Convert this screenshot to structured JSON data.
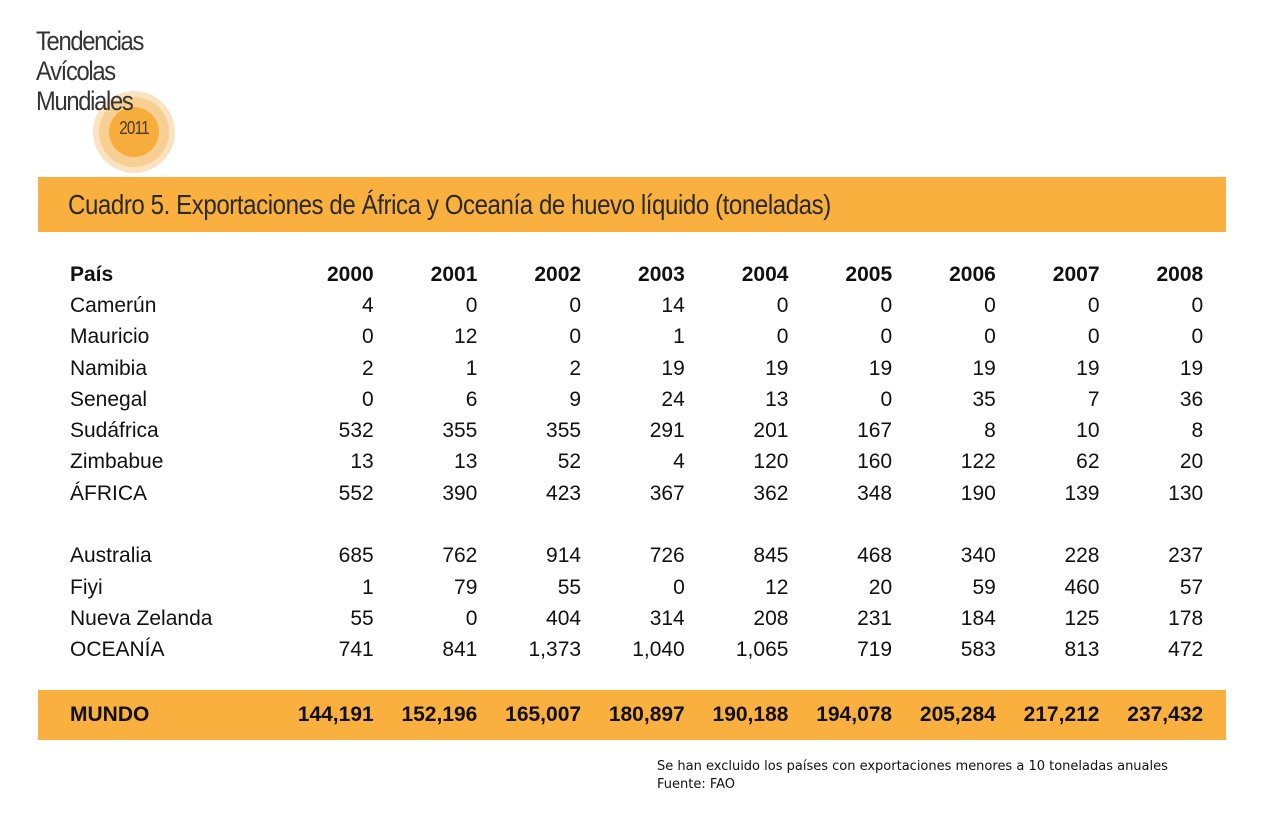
{
  "logo": {
    "line1": "Tendencias",
    "line2": "Avícolas",
    "line3": "Mundiales",
    "year": "2011"
  },
  "banner": {
    "title": "Cuadro 5. Exportaciones de África y Oceanía de huevo líquido (toneladas)"
  },
  "table": {
    "header": [
      "País",
      "2000",
      "2001",
      "2002",
      "2003",
      "2004",
      "2005",
      "2006",
      "2007",
      "2008"
    ],
    "africa_rows": [
      [
        "Camerún",
        "4",
        "0",
        "0",
        "14",
        "0",
        "0",
        "0",
        "0",
        "0"
      ],
      [
        "Mauricio",
        "0",
        "12",
        "0",
        "1",
        "0",
        "0",
        "0",
        "0",
        "0"
      ],
      [
        "Namibia",
        "2",
        "1",
        "2",
        "19",
        "19",
        "19",
        "19",
        "19",
        "19"
      ],
      [
        "Senegal",
        "0",
        "6",
        "9",
        "24",
        "13",
        "0",
        "35",
        "7",
        "36"
      ],
      [
        "Sudáfrica",
        "532",
        "355",
        "355",
        "291",
        "201",
        "167",
        "8",
        "10",
        "8"
      ],
      [
        "Zimbabue",
        "13",
        "13",
        "52",
        "4",
        "120",
        "160",
        "122",
        "62",
        "20"
      ]
    ],
    "africa_total": [
      "ÁFRICA",
      "552",
      "390",
      "423",
      "367",
      "362",
      "348",
      "190",
      "139",
      "130"
    ],
    "oceania_rows": [
      [
        "Australia",
        "685",
        "762",
        "914",
        "726",
        "845",
        "468",
        "340",
        "228",
        "237"
      ],
      [
        "Fiyi",
        "1",
        "79",
        "55",
        "0",
        "12",
        "20",
        "59",
        "460",
        "57"
      ],
      [
        "Nueva Zelanda",
        "55",
        "0",
        "404",
        "314",
        "208",
        "231",
        "184",
        "125",
        "178"
      ]
    ],
    "oceania_total": [
      "OCEANÍA",
      "741",
      "841",
      "1,373",
      "1,040",
      "1,065",
      "719",
      "583",
      "813",
      "472"
    ],
    "world_total": [
      "MUNDO",
      "144,191",
      "152,196",
      "165,007",
      "180,897",
      "190,188",
      "194,078",
      "205,284",
      "217,212",
      "237,432"
    ]
  },
  "notes": {
    "line1": "Se han excluido los países con exportaciones menores a 10 toneladas anuales",
    "line2": "Fuente: FAO"
  },
  "colors": {
    "accent": "#f9b03f"
  }
}
